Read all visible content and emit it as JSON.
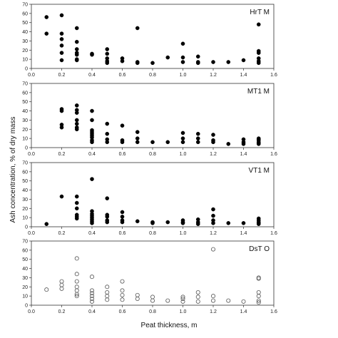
{
  "figure": {
    "ylabel": "Ash concentration, % of dry mass",
    "xlabel": "Peat thickness, m"
  },
  "chart_data": [
    {
      "type": "scatter",
      "label": "HrT M",
      "marker": "filled",
      "xlim": [
        0,
        1.6
      ],
      "ylim": [
        0,
        70
      ],
      "xticks": [
        "0.0",
        "0.2",
        "0.4",
        "0.6",
        "0.8",
        "1.0",
        "1.2",
        "1.4",
        "1.6"
      ],
      "yticks": [
        "0",
        "10",
        "20",
        "30",
        "40",
        "50",
        "60",
        "70"
      ],
      "x": [
        0.1,
        0.1,
        0.2,
        0.2,
        0.2,
        0.2,
        0.2,
        0.2,
        0.3,
        0.3,
        0.3,
        0.3,
        0.3,
        0.3,
        0.3,
        0.4,
        0.4,
        0.5,
        0.5,
        0.5,
        0.5,
        0.5,
        0.6,
        0.6,
        0.7,
        0.7,
        0.7,
        0.8,
        0.9,
        1.0,
        1.0,
        1.0,
        1.1,
        1.1,
        1.1,
        1.2,
        1.3,
        1.4,
        1.5,
        1.5,
        1.5,
        1.5,
        1.5,
        1.5
      ],
      "y": [
        56,
        38,
        58,
        38,
        32,
        25,
        17,
        9,
        44,
        29,
        21,
        17,
        15,
        10,
        9,
        16,
        15,
        21,
        16,
        11,
        8,
        6,
        11,
        8,
        44,
        7,
        6,
        6,
        12,
        27,
        12,
        7,
        13,
        7,
        6,
        7,
        7,
        9,
        48,
        19,
        17,
        11,
        8,
        6
      ]
    },
    {
      "type": "scatter",
      "label": "MT1  M",
      "marker": "filled",
      "xlim": [
        0,
        1.6
      ],
      "ylim": [
        0,
        70
      ],
      "xticks": [
        "0.0",
        "0.2",
        "0.4",
        "0.6",
        "0.8",
        "1.0",
        "1.2",
        "1.4",
        "1.6"
      ],
      "yticks": [
        "0",
        "10",
        "20",
        "30",
        "40",
        "50",
        "60",
        "70"
      ],
      "x": [
        0.2,
        0.2,
        0.2,
        0.2,
        0.3,
        0.3,
        0.3,
        0.3,
        0.3,
        0.3,
        0.3,
        0.4,
        0.4,
        0.4,
        0.4,
        0.4,
        0.4,
        0.4,
        0.4,
        0.4,
        0.5,
        0.5,
        0.5,
        0.5,
        0.6,
        0.6,
        0.6,
        0.7,
        0.7,
        0.7,
        0.8,
        0.9,
        1.0,
        1.0,
        1.0,
        1.1,
        1.1,
        1.1,
        1.2,
        1.2,
        1.2,
        1.3,
        1.4,
        1.4,
        1.4,
        1.5,
        1.5,
        1.5,
        1.5,
        1.5,
        1.5
      ],
      "y": [
        42,
        40,
        25,
        22,
        46,
        41,
        38,
        30,
        26,
        22,
        20,
        40,
        30,
        19,
        17,
        15,
        13,
        11,
        8,
        6,
        26,
        15,
        9,
        6,
        24,
        8,
        6,
        17,
        10,
        6,
        6,
        6,
        16,
        10,
        6,
        15,
        10,
        6,
        14,
        8,
        6,
        4,
        9,
        6,
        4,
        10,
        9,
        8,
        6,
        5,
        4
      ]
    },
    {
      "type": "scatter",
      "label": "VT1  M",
      "marker": "filled",
      "xlim": [
        0,
        1.6
      ],
      "ylim": [
        0,
        70
      ],
      "xticks": [
        "0.0",
        "0.2",
        "0.4",
        "0.6",
        "0.8",
        "1.0",
        "1.2",
        "1.4",
        "1.6"
      ],
      "yticks": [
        "0",
        "10",
        "20",
        "30",
        "40",
        "50",
        "60",
        "70"
      ],
      "x": [
        0.1,
        0.2,
        0.3,
        0.3,
        0.3,
        0.3,
        0.3,
        0.3,
        0.4,
        0.4,
        0.4,
        0.4,
        0.4,
        0.4,
        0.4,
        0.4,
        0.5,
        0.5,
        0.5,
        0.5,
        0.5,
        0.6,
        0.6,
        0.6,
        0.6,
        0.7,
        0.8,
        0.8,
        0.9,
        1.0,
        1.0,
        1.0,
        1.1,
        1.1,
        1.1,
        1.2,
        1.2,
        1.2,
        1.2,
        1.3,
        1.4,
        1.5,
        1.5,
        1.5,
        1.5,
        1.5
      ],
      "y": [
        3,
        33,
        33,
        26,
        20,
        13,
        11,
        9,
        52,
        17,
        14,
        12,
        10,
        8,
        6,
        4,
        31,
        13,
        11,
        7,
        5,
        16,
        11,
        7,
        5,
        6,
        5,
        4,
        5,
        7,
        5,
        4,
        8,
        5,
        3,
        19,
        12,
        7,
        4,
        4,
        4,
        9,
        7,
        5,
        4,
        3
      ]
    },
    {
      "type": "scatter",
      "label": "DsT O",
      "marker": "open",
      "xlim": [
        0,
        1.6
      ],
      "ylim": [
        0,
        70
      ],
      "xticks": [
        "0.0",
        "0.2",
        "0.4",
        "0.6",
        "0.8",
        "1.0",
        "1.2",
        "1.4",
        "1.6"
      ],
      "yticks": [
        "0",
        "10",
        "20",
        "30",
        "40",
        "50",
        "60",
        "70"
      ],
      "x": [
        0.1,
        0.2,
        0.2,
        0.2,
        0.3,
        0.3,
        0.3,
        0.3,
        0.3,
        0.3,
        0.3,
        0.4,
        0.4,
        0.4,
        0.4,
        0.4,
        0.4,
        0.5,
        0.5,
        0.5,
        0.5,
        0.6,
        0.6,
        0.6,
        0.6,
        0.7,
        0.7,
        0.8,
        0.8,
        0.9,
        1.0,
        1.0,
        1.0,
        1.1,
        1.1,
        1.1,
        1.2,
        1.2,
        1.2,
        1.3,
        1.4,
        1.5,
        1.5,
        1.5,
        1.5,
        1.5,
        1.5
      ],
      "y": [
        17,
        26,
        22,
        18,
        51,
        34,
        26,
        20,
        16,
        12,
        10,
        31,
        16,
        13,
        10,
        7,
        4,
        20,
        14,
        10,
        6,
        26,
        16,
        11,
        6,
        11,
        7,
        9,
        5,
        5,
        9,
        7,
        4,
        14,
        9,
        4,
        61,
        10,
        5,
        5,
        4,
        30,
        29,
        14,
        10,
        5,
        3
      ]
    }
  ]
}
